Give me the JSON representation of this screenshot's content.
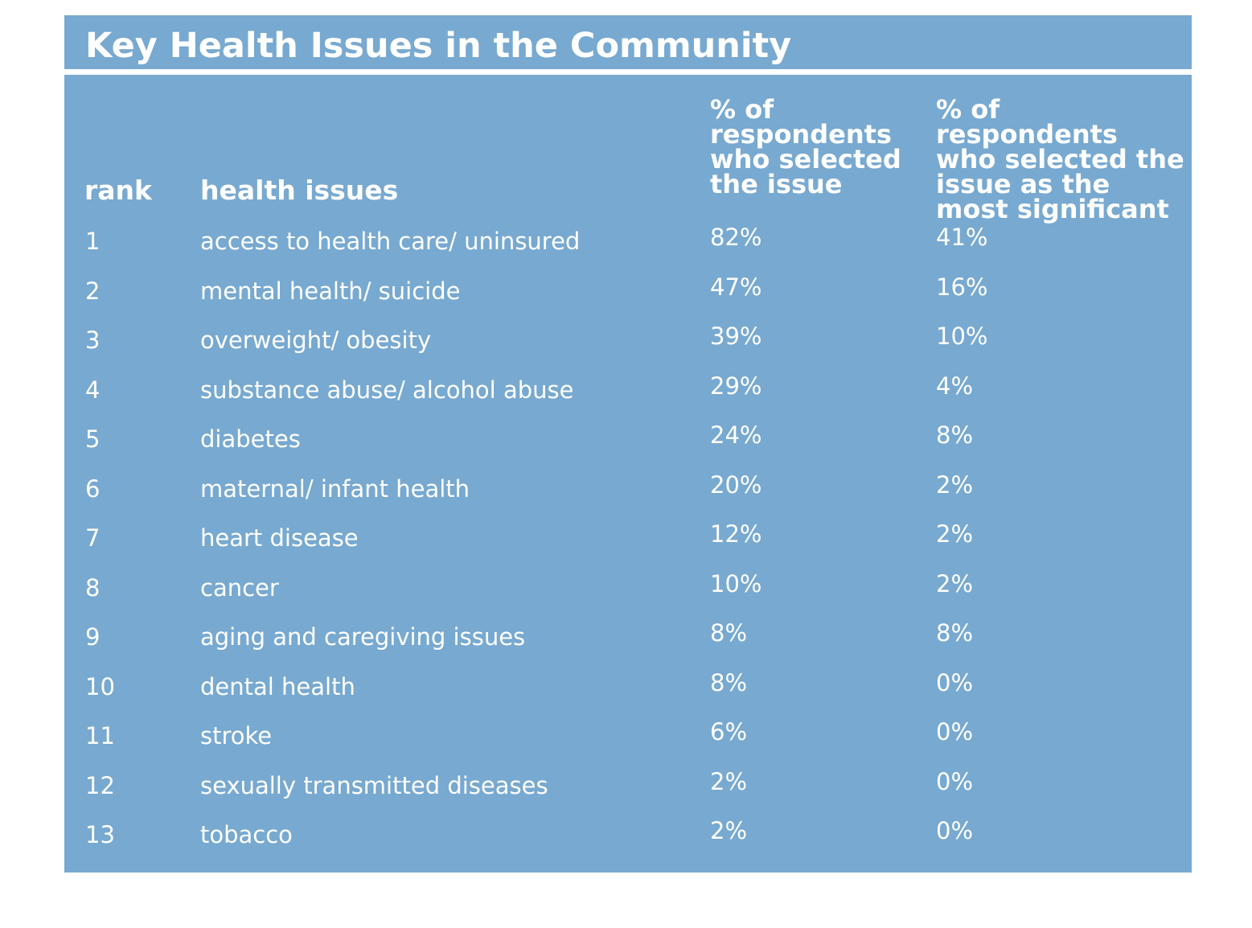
{
  "title": "Key Health Issues in the Community",
  "columns": {
    "rank": "rank",
    "issue": "health issues",
    "pct_selected": "% of respondents who selected the issue",
    "pct_most_significant": "% of respondents who selected the issue as the most significant"
  },
  "rows": [
    {
      "rank": "1",
      "issue": "access to health care/ uninsured",
      "pct_selected": "82%",
      "pct_most_significant": "41%"
    },
    {
      "rank": "2",
      "issue": "mental health/ suicide",
      "pct_selected": "47%",
      "pct_most_significant": "16%"
    },
    {
      "rank": "3",
      "issue": "overweight/ obesity",
      "pct_selected": "39%",
      "pct_most_significant": "10%"
    },
    {
      "rank": "4",
      "issue": "substance abuse/ alcohol abuse",
      "pct_selected": "29%",
      "pct_most_significant": "4%"
    },
    {
      "rank": "5",
      "issue": "diabetes",
      "pct_selected": "24%",
      "pct_most_significant": "8%"
    },
    {
      "rank": "6",
      "issue": "maternal/ infant health",
      "pct_selected": "20%",
      "pct_most_significant": "2%"
    },
    {
      "rank": "7",
      "issue": "heart disease",
      "pct_selected": "12%",
      "pct_most_significant": "2%"
    },
    {
      "rank": "8",
      "issue": "cancer",
      "pct_selected": "10%",
      "pct_most_significant": "2%"
    },
    {
      "rank": "9",
      "issue": "aging and caregiving issues",
      "pct_selected": "8%",
      "pct_most_significant": "8%"
    },
    {
      "rank": "10",
      "issue": "dental health",
      "pct_selected": "8%",
      "pct_most_significant": "0%"
    },
    {
      "rank": "11",
      "issue": "stroke",
      "pct_selected": "6%",
      "pct_most_significant": "0%"
    },
    {
      "rank": "12",
      "issue": "sexually transmitted diseases",
      "pct_selected": "2%",
      "pct_most_significant": "0%"
    },
    {
      "rank": "13",
      "issue": "tobacco",
      "pct_selected": "2%",
      "pct_most_significant": "0%"
    }
  ],
  "colors": {
    "panel": "#78a9d0",
    "text": "#ffffff",
    "background": "#ffffff"
  }
}
